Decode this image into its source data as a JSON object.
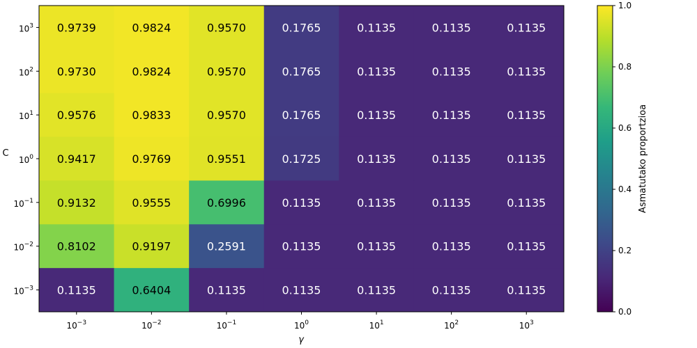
{
  "chart_data": {
    "type": "heatmap",
    "xlabel": "γ",
    "ylabel": "C",
    "x_tick_exponents": [
      "-3",
      "-2",
      "-1",
      "0",
      "1",
      "2",
      "3"
    ],
    "y_tick_exponents": [
      "3",
      "2",
      "1",
      "0",
      "-1",
      "-2",
      "-3"
    ],
    "tick_base": "10",
    "values": [
      [
        0.9739,
        0.9824,
        0.957,
        0.1765,
        0.1135,
        0.1135,
        0.1135
      ],
      [
        0.973,
        0.9824,
        0.957,
        0.1765,
        0.1135,
        0.1135,
        0.1135
      ],
      [
        0.9576,
        0.9833,
        0.957,
        0.1765,
        0.1135,
        0.1135,
        0.1135
      ],
      [
        0.9417,
        0.9769,
        0.9551,
        0.1725,
        0.1135,
        0.1135,
        0.1135
      ],
      [
        0.9132,
        0.9555,
        0.6996,
        0.1135,
        0.1135,
        0.1135,
        0.1135
      ],
      [
        0.8102,
        0.9197,
        0.2591,
        0.1135,
        0.1135,
        0.1135,
        0.1135
      ],
      [
        0.1135,
        0.6404,
        0.1135,
        0.1135,
        0.1135,
        0.1135,
        0.1135
      ]
    ],
    "colorbar": {
      "label": "Asmatutako proportzioa",
      "range": [
        0.0,
        1.0
      ],
      "ticks": [
        "0.0",
        "0.2",
        "0.4",
        "0.6",
        "0.8",
        "1.0"
      ],
      "colormap": "viridis"
    }
  }
}
